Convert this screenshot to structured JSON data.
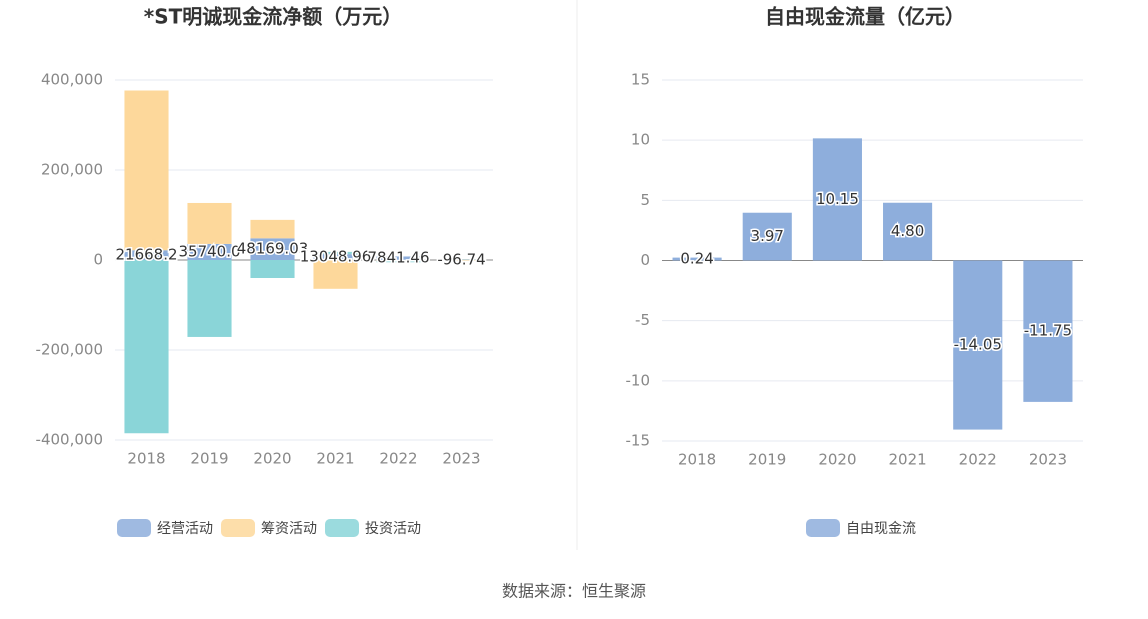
{
  "chart_data": [
    {
      "type": "bar",
      "stacked": true,
      "title": "*ST明诚现金流净额（万元）",
      "categories": [
        "2018",
        "2019",
        "2020",
        "2021",
        "2022",
        "2023"
      ],
      "series": [
        {
          "name": "经营活动",
          "color": "#8eaedc",
          "values": [
            21668.2,
            35740.0,
            48169.03,
            13048.96,
            7841.46,
            -96.74
          ],
          "value_labels": [
            "21668.2",
            "35740.0",
            "48169.03",
            "13048.96",
            "7841.46",
            "-96.74"
          ]
        },
        {
          "name": "筹资活动",
          "color": "#fdd89b",
          "values": [
            355000,
            91000,
            41000,
            -64000,
            -3000,
            -1000
          ]
        },
        {
          "name": "投资活动",
          "color": "#8ad5d8",
          "values": [
            -385000,
            -171000,
            -40000,
            5000,
            -2000,
            500
          ]
        }
      ],
      "ylim": [
        -400000,
        400000
      ],
      "yticks": [
        {
          "value": -400000,
          "label": "-400,000"
        },
        {
          "value": -200000,
          "label": "-200,000"
        },
        0,
        {
          "value": 200000,
          "label": "200,000"
        },
        {
          "value": 400000,
          "label": "400,000"
        }
      ],
      "grid": true,
      "legend": "bottom"
    },
    {
      "type": "bar",
      "title": "自由现金流量（亿元）",
      "categories": [
        "2018",
        "2019",
        "2020",
        "2021",
        "2022",
        "2023"
      ],
      "series": [
        {
          "name": "自由现金流",
          "color": "#8eaedc",
          "values": [
            0.24,
            3.97,
            10.15,
            4.8,
            -14.05,
            -11.75
          ],
          "value_labels": [
            "0.24",
            "3.97",
            "10.15",
            "4.80",
            "-14.05",
            "-11.75"
          ]
        }
      ],
      "ylim": [
        -15,
        15
      ],
      "yticks": [
        -15,
        -10,
        -5,
        0,
        5,
        10,
        15
      ],
      "grid": true,
      "legend": "bottom"
    }
  ],
  "source": "数据来源：恒生聚源"
}
